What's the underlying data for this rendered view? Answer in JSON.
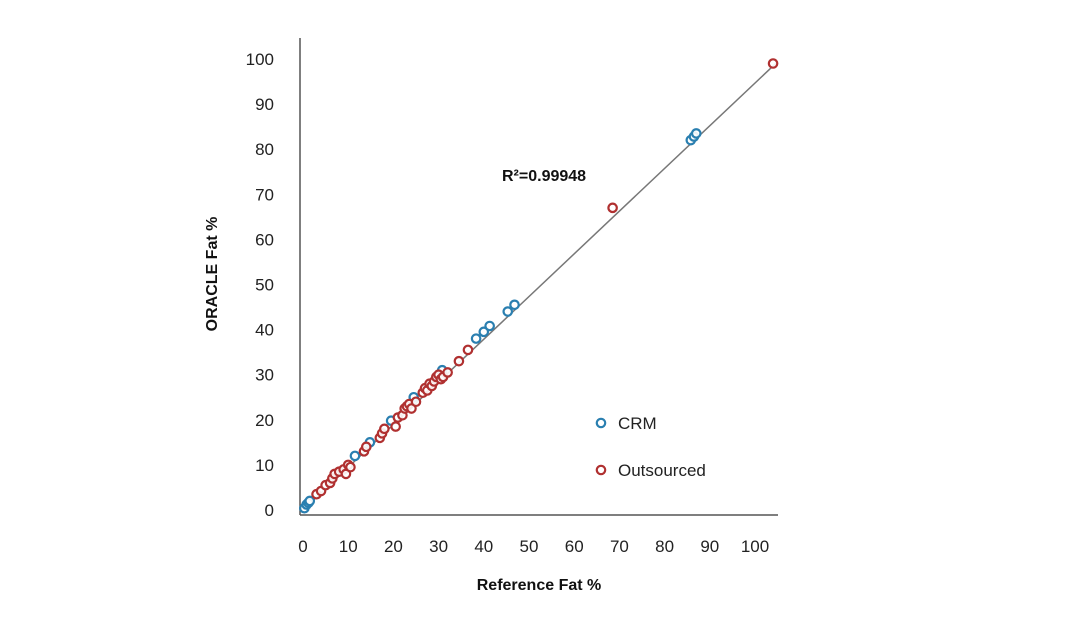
{
  "chart_data": {
    "type": "scatter",
    "xlabel": "Reference Fat %",
    "ylabel": "ORACLE Fat %",
    "xlim": [
      0,
      105
    ],
    "ylim": [
      0,
      100
    ],
    "x_ticks": [
      "0",
      "10",
      "20",
      "30",
      "40",
      "50",
      "60",
      "70",
      "80",
      "90",
      "100"
    ],
    "y_ticks": [
      "0",
      "10",
      "20",
      "30",
      "40",
      "50",
      "60",
      "70",
      "80",
      "90",
      "100"
    ],
    "annotation": "R²=0.99948",
    "grid": false,
    "legend_position": "bottom-right",
    "fit_line": {
      "x": [
        0,
        105
      ],
      "y": [
        0,
        99.4
      ]
    },
    "series": [
      {
        "name": "CRM",
        "color": "#2a7fb0",
        "points": [
          [
            0.3,
            0.4
          ],
          [
            0.8,
            1.2
          ],
          [
            1.2,
            1.6
          ],
          [
            1.5,
            2.0
          ],
          [
            11.5,
            12.0
          ],
          [
            14.8,
            15.0
          ],
          [
            19.5,
            19.8
          ],
          [
            24.5,
            25.0
          ],
          [
            30.8,
            31.0
          ],
          [
            38.3,
            38.0
          ],
          [
            40.0,
            39.5
          ],
          [
            41.3,
            40.8
          ],
          [
            45.3,
            44.0
          ],
          [
            46.8,
            45.5
          ],
          [
            85.8,
            82.0
          ],
          [
            86.5,
            82.8
          ],
          [
            87.0,
            83.5
          ]
        ]
      },
      {
        "name": "Outsourced",
        "color": "#b03030",
        "points": [
          [
            3.0,
            3.5
          ],
          [
            4.0,
            4.2
          ],
          [
            5.0,
            5.5
          ],
          [
            6.0,
            6.0
          ],
          [
            6.5,
            7.0
          ],
          [
            7.0,
            8.0
          ],
          [
            8.0,
            8.5
          ],
          [
            9.0,
            9.0
          ],
          [
            9.5,
            8.0
          ],
          [
            10.0,
            10.0
          ],
          [
            10.5,
            9.5
          ],
          [
            13.5,
            13.0
          ],
          [
            14.0,
            14.0
          ],
          [
            17.0,
            16.0
          ],
          [
            17.5,
            17.0
          ],
          [
            18.0,
            18.0
          ],
          [
            20.5,
            18.5
          ],
          [
            21.0,
            20.5
          ],
          [
            22.0,
            21.0
          ],
          [
            22.5,
            22.5
          ],
          [
            23.0,
            23.0
          ],
          [
            23.5,
            23.5
          ],
          [
            24.0,
            22.5
          ],
          [
            25.0,
            24.0
          ],
          [
            26.5,
            26.0
          ],
          [
            27.0,
            27.0
          ],
          [
            27.5,
            26.5
          ],
          [
            28.0,
            28.0
          ],
          [
            28.5,
            27.5
          ],
          [
            29.0,
            28.5
          ],
          [
            29.5,
            29.5
          ],
          [
            30.0,
            30.0
          ],
          [
            30.5,
            29.0
          ],
          [
            31.0,
            29.5
          ],
          [
            32.0,
            30.5
          ],
          [
            34.5,
            33.0
          ],
          [
            36.5,
            35.5
          ],
          [
            68.5,
            67.0
          ],
          [
            104.0,
            99.0
          ]
        ]
      }
    ]
  }
}
